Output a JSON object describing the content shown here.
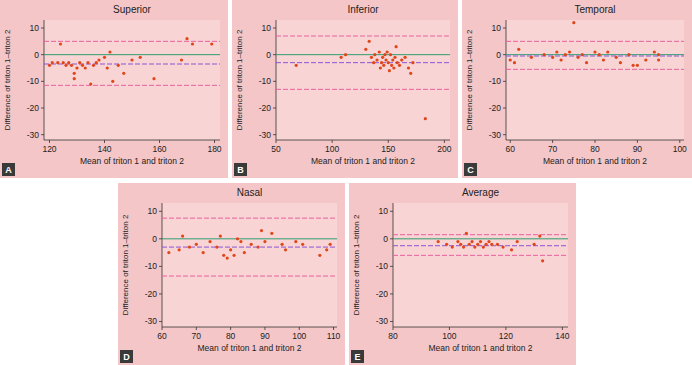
{
  "chart_data": [
    {
      "type": "scatter",
      "title": "Superior",
      "panel_label": "A",
      "x_label": "Mean of triton 1 and triton 2",
      "y_label": "Difference of triton 1–triton 2",
      "color": "#e0461c",
      "marker": "circle",
      "x": [
        120,
        121,
        123,
        124,
        125,
        126,
        127,
        128,
        129,
        129,
        130,
        131,
        132,
        133,
        134,
        135,
        136,
        137,
        138,
        140,
        141,
        142,
        143,
        145,
        147,
        150,
        153,
        158,
        168,
        170,
        172,
        179
      ],
      "values": [
        -4,
        -3,
        -3,
        4,
        -3,
        -4,
        -3,
        -4,
        -7,
        -9,
        -5,
        -3,
        -4,
        -5,
        -3,
        -11,
        -4,
        -3,
        -2,
        -1,
        -5,
        1,
        -10,
        -4,
        -7,
        -2,
        -1,
        -9,
        -2,
        6,
        4,
        4
      ],
      "reference_line": 0,
      "mean_difference": -3.5,
      "limits_of_agreement": [
        -11.5,
        5
      ],
      "xlim": [
        118,
        182
      ],
      "ylim": [
        -32,
        13
      ],
      "xticks": [
        120,
        140,
        160,
        180
      ],
      "yticks": [
        -30,
        -20,
        -10,
        0,
        10
      ]
    },
    {
      "type": "scatter",
      "title": "Inferior",
      "panel_label": "B",
      "x_label": "Mean of triton 1 and triton 2",
      "y_label": "Difference of triton 1–triton 2",
      "color": "#e0461c",
      "marker": "circle",
      "x": [
        68,
        108,
        112,
        130,
        133,
        135,
        137,
        138,
        140,
        142,
        143,
        144,
        145,
        146,
        147,
        148,
        149,
        150,
        151,
        152,
        153,
        154,
        155,
        156,
        157,
        158,
        160,
        162,
        165,
        168,
        170,
        172,
        183
      ],
      "values": [
        -4,
        -1,
        0,
        2,
        5,
        -1,
        -3,
        0,
        -2,
        1,
        -5,
        -3,
        -1,
        -4,
        0,
        -2,
        1,
        -3,
        -6,
        0,
        -4,
        -2,
        -5,
        -1,
        3,
        -3,
        -4,
        -2,
        -1,
        -5,
        -7,
        -3,
        -24
      ],
      "reference_line": 0,
      "mean_difference": -3,
      "limits_of_agreement": [
        -13,
        7
      ],
      "xlim": [
        50,
        205
      ],
      "ylim": [
        -32,
        13
      ],
      "xticks": [
        50,
        100,
        150,
        200
      ],
      "yticks": [
        -30,
        -20,
        -10,
        0,
        10
      ]
    },
    {
      "type": "scatter",
      "title": "Temporal",
      "panel_label": "C",
      "x_label": "Mean of triton 1 and triton 2",
      "y_label": "Difference of triton 1–triton 2",
      "color": "#e0461c",
      "marker": "circle",
      "x": [
        60,
        61,
        62,
        65,
        68,
        70,
        71,
        72,
        73,
        74,
        75,
        76,
        77,
        78,
        80,
        81,
        82,
        83,
        85,
        86,
        88,
        89,
        90,
        92,
        94,
        95,
        95
      ],
      "values": [
        -2,
        -3,
        2,
        -1,
        0,
        -1,
        1,
        -2,
        0,
        1,
        12,
        -1,
        0,
        -3,
        1,
        0,
        -2,
        1,
        -1,
        -3,
        0,
        -4,
        -4,
        -2,
        1,
        -2,
        0
      ],
      "reference_line": 0,
      "mean_difference": -0.5,
      "limits_of_agreement": [
        -5.5,
        5
      ],
      "xlim": [
        59,
        101
      ],
      "ylim": [
        -32,
        13
      ],
      "xticks": [
        60,
        70,
        80,
        90,
        100
      ],
      "yticks": [
        -30,
        -20,
        -10,
        0,
        10
      ]
    },
    {
      "type": "scatter",
      "title": "Nasal",
      "panel_label": "D",
      "x_label": "Mean of triton 1 and triton 2",
      "y_label": "Difference of triton 1–triton 2",
      "color": "#e0461c",
      "marker": "circle",
      "x": [
        62,
        65,
        66,
        68,
        70,
        72,
        74,
        76,
        77,
        78,
        79,
        80,
        81,
        82,
        83,
        84,
        86,
        88,
        89,
        90,
        92,
        95,
        96,
        99,
        101,
        106,
        108,
        109
      ],
      "values": [
        -5,
        -4,
        1,
        -3,
        -2,
        -5,
        -1,
        -3,
        1,
        -6,
        -7,
        -4,
        -6,
        0,
        -1,
        -5,
        -2,
        -3,
        3,
        -1,
        2,
        -2,
        -4,
        -1,
        -2,
        -6,
        -4,
        -2
      ],
      "reference_line": 0,
      "mean_difference": -3,
      "limits_of_agreement": [
        -13.5,
        7.5
      ],
      "xlim": [
        60,
        111
      ],
      "ylim": [
        -32,
        13
      ],
      "xticks": [
        60,
        70,
        80,
        90,
        100,
        110
      ],
      "yticks": [
        -30,
        -20,
        -10,
        0,
        10
      ]
    },
    {
      "type": "scatter",
      "title": "Average",
      "panel_label": "E",
      "x_label": "Mean of triton 1 and triton 2",
      "y_label": "Difference of triton 1–triton 2",
      "color": "#e0461c",
      "marker": "circle",
      "x": [
        96,
        99,
        101,
        103,
        104,
        105,
        106,
        107,
        108,
        109,
        110,
        111,
        112,
        113,
        114,
        115,
        117,
        119,
        122,
        124,
        130,
        132,
        133
      ],
      "values": [
        -1,
        -2,
        -3,
        -1,
        -2,
        -3,
        2,
        -2,
        -1,
        -3,
        -2,
        -1,
        -3,
        -2,
        -1,
        -2,
        -2,
        -3,
        -4,
        -1,
        -2,
        1,
        -8
      ],
      "reference_line": 0,
      "mean_difference": -2.5,
      "limits_of_agreement": [
        -6,
        1.5
      ],
      "xlim": [
        80,
        142
      ],
      "ylim": [
        -32,
        13
      ],
      "xticks": [
        80,
        100,
        120,
        140
      ],
      "yticks": [
        -30,
        -20,
        -10,
        0,
        10
      ]
    }
  ]
}
